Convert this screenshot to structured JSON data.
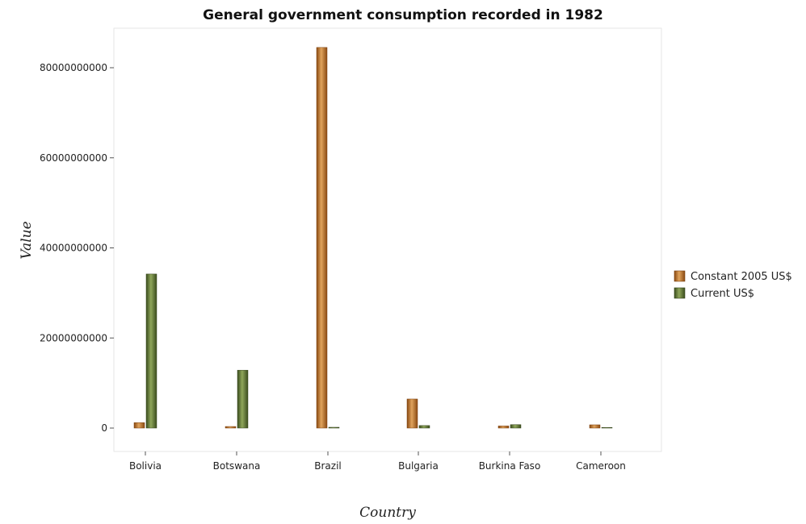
{
  "chart_data": {
    "type": "bar",
    "title": "General government consumption recorded in 1982",
    "xlabel": "Country",
    "ylabel": "Value",
    "ylim": [
      0,
      90000000000
    ],
    "yticks": [
      0,
      20000000000,
      40000000000,
      60000000000,
      80000000000
    ],
    "ytick_labels": [
      "0",
      "20000000000",
      "40000000000",
      "60000000000",
      "80000000000"
    ],
    "categories": [
      "Bolivia",
      "Botswana",
      "Brazil",
      "Bulgaria",
      "Burkina Faso",
      "Cameroon"
    ],
    "series": [
      {
        "name": "Constant 2005 US$",
        "color": "#b5651d",
        "values": [
          1200000000,
          350000000,
          84500000000,
          6450000000,
          470000000,
          720000000
        ]
      },
      {
        "name": "Current US$",
        "color": "#556b2f",
        "values": [
          34200000000,
          12850000000,
          180000000,
          560000000,
          760000000,
          80000000
        ]
      }
    ],
    "legend_position": "right",
    "grid": false
  }
}
